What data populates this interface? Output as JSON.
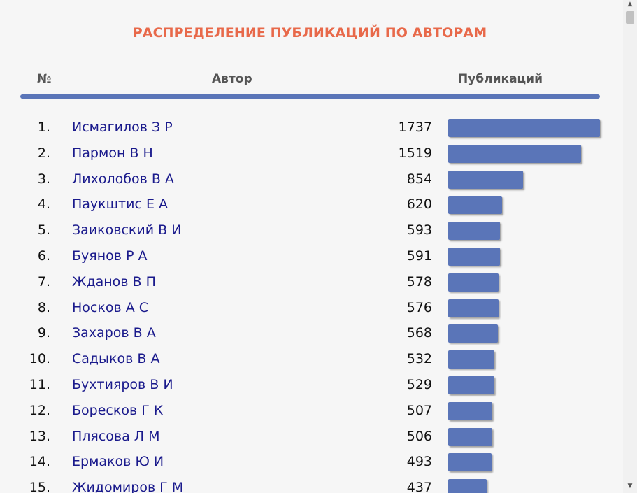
{
  "page": {
    "title": "РАСПРЕДЕЛЕНИЕ ПУБЛИКАЦИЙ ПО АВТОРАМ",
    "columns": {
      "number": "№",
      "author": "Автор",
      "publications": "Публикаций"
    }
  },
  "colors": {
    "title": "#e8694a",
    "bar": "#5a75b8",
    "link": "#1a1a8c",
    "header_text": "#555555"
  },
  "max_count": 1737,
  "rows": [
    {
      "num": "1.",
      "name": "Исмагилов З Р",
      "count": 1737
    },
    {
      "num": "2.",
      "name": "Пармон В Н",
      "count": 1519
    },
    {
      "num": "3.",
      "name": "Лихолобов В А",
      "count": 854
    },
    {
      "num": "4.",
      "name": "Паукштис Е А",
      "count": 620
    },
    {
      "num": "5.",
      "name": "Заиковский В И",
      "count": 593
    },
    {
      "num": "6.",
      "name": "Буянов Р А",
      "count": 591
    },
    {
      "num": "7.",
      "name": "Жданов В П",
      "count": 578
    },
    {
      "num": "8.",
      "name": "Носков А С",
      "count": 576
    },
    {
      "num": "9.",
      "name": "Захаров В А",
      "count": 568
    },
    {
      "num": "10.",
      "name": "Садыков В А",
      "count": 532
    },
    {
      "num": "11.",
      "name": "Бухтияров В И",
      "count": 529
    },
    {
      "num": "12.",
      "name": "Боресков Г К",
      "count": 507
    },
    {
      "num": "13.",
      "name": "Плясова Л М",
      "count": 506
    },
    {
      "num": "14.",
      "name": "Ермаков Ю И",
      "count": 493
    },
    {
      "num": "15.",
      "name": "Жидомиров Г М",
      "count": 437
    }
  ],
  "scrollbar": {
    "up_icon": "▲",
    "down_icon": "▼"
  }
}
